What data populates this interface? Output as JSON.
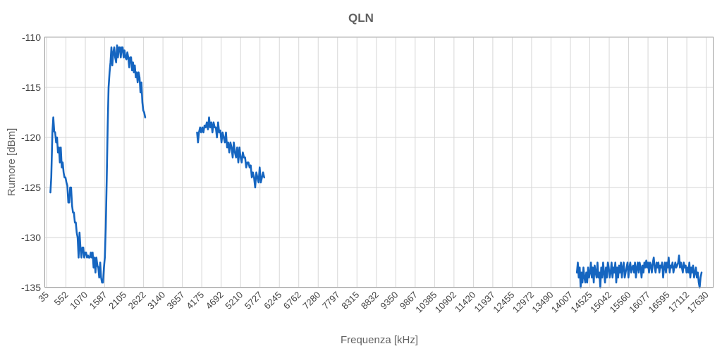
{
  "chart_data": {
    "type": "line",
    "title": "QLN",
    "xlabel": "Frequenza [kHz]",
    "ylabel": "Rumore [dBm]",
    "ylim": [
      -135,
      -110
    ],
    "yticks": [
      "-110",
      "-115",
      "-120",
      "-125",
      "-130",
      "-135"
    ],
    "xlim": [
      35,
      17800
    ],
    "xticks": [
      "35",
      "552",
      "1070",
      "1587",
      "2105",
      "2622",
      "3140",
      "3657",
      "4175",
      "4692",
      "5210",
      "5727",
      "6245",
      "6762",
      "7280",
      "7797",
      "8315",
      "8832",
      "9350",
      "9867",
      "10385",
      "10902",
      "11420",
      "11937",
      "12455",
      "12972",
      "13490",
      "14007",
      "14525",
      "15042",
      "15560",
      "16077",
      "16595",
      "17112",
      "17630"
    ],
    "grid": true,
    "legend": "none",
    "colors": {
      "series": "#1565c0"
    },
    "series": [
      {
        "values": [
          [
            138,
            -125.5
          ],
          [
            160,
            -124
          ],
          [
            190,
            -119.5
          ],
          [
            215,
            -118
          ],
          [
            240,
            -119.4
          ],
          [
            265,
            -119.5
          ],
          [
            290,
            -120.5
          ],
          [
            315,
            -120
          ],
          [
            340,
            -121.5
          ],
          [
            365,
            -121
          ],
          [
            390,
            -122.5
          ],
          [
            415,
            -121
          ],
          [
            440,
            -123
          ],
          [
            465,
            -122.5
          ],
          [
            490,
            -123.5
          ],
          [
            515,
            -124
          ],
          [
            540,
            -124
          ],
          [
            565,
            -124.5
          ],
          [
            590,
            -124.8
          ],
          [
            615,
            -126.5
          ],
          [
            640,
            -126.5
          ],
          [
            665,
            -125
          ],
          [
            690,
            -125
          ],
          [
            715,
            -126.8
          ],
          [
            740,
            -127.5
          ],
          [
            765,
            -127.5
          ],
          [
            790,
            -128.5
          ],
          [
            815,
            -128.5
          ],
          [
            840,
            -129.5
          ],
          [
            865,
            -130
          ],
          [
            890,
            -132
          ],
          [
            915,
            -129.5
          ],
          [
            940,
            -131
          ],
          [
            965,
            -132
          ],
          [
            990,
            -131
          ],
          [
            1015,
            -131
          ],
          [
            1040,
            -132
          ],
          [
            1065,
            -131.5
          ],
          [
            1090,
            -131.5
          ],
          [
            1115,
            -132
          ],
          [
            1140,
            -131.8
          ],
          [
            1165,
            -132
          ],
          [
            1190,
            -132
          ],
          [
            1215,
            -131.5
          ],
          [
            1240,
            -132
          ],
          [
            1265,
            -131.5
          ],
          [
            1290,
            -133
          ],
          [
            1315,
            -132
          ],
          [
            1340,
            -133.5
          ],
          [
            1365,
            -132
          ],
          [
            1390,
            -132.8
          ],
          [
            1415,
            -133
          ],
          [
            1440,
            -134
          ],
          [
            1465,
            -132.5
          ],
          [
            1490,
            -134
          ],
          [
            1515,
            -134.5
          ],
          [
            1540,
            -134.5
          ],
          [
            1565,
            -133
          ],
          [
            1590,
            -132
          ],
          [
            1615,
            -129
          ],
          [
            1640,
            -124
          ],
          [
            1665,
            -119
          ],
          [
            1690,
            -115
          ],
          [
            1715,
            -113.5
          ],
          [
            1740,
            -112.5
          ],
          [
            1765,
            -111
          ],
          [
            1790,
            -112.8
          ],
          [
            1815,
            -111.5
          ],
          [
            1840,
            -111
          ],
          [
            1865,
            -112
          ],
          [
            1890,
            -112.5
          ],
          [
            1915,
            -110.8
          ],
          [
            1940,
            -112
          ],
          [
            1965,
            -111
          ],
          [
            1990,
            -111
          ],
          [
            2015,
            -112
          ],
          [
            2040,
            -111
          ],
          [
            2065,
            -111
          ],
          [
            2090,
            -112
          ],
          [
            2115,
            -111.3
          ],
          [
            2140,
            -112
          ],
          [
            2165,
            -112.2
          ],
          [
            2190,
            -111.5
          ],
          [
            2215,
            -112
          ],
          [
            2240,
            -113
          ],
          [
            2265,
            -112
          ],
          [
            2290,
            -112
          ],
          [
            2315,
            -113.3
          ],
          [
            2340,
            -112.5
          ],
          [
            2365,
            -113.5
          ],
          [
            2390,
            -112.8
          ],
          [
            2415,
            -114
          ],
          [
            2440,
            -113.5
          ],
          [
            2465,
            -114.5
          ],
          [
            2490,
            -113.5
          ],
          [
            2515,
            -114
          ],
          [
            2540,
            -115.5
          ],
          [
            2565,
            -114.5
          ],
          [
            2590,
            -116.5
          ],
          [
            2615,
            -117.3
          ],
          [
            2640,
            -117.5
          ],
          [
            2665,
            -118
          ]
        ]
      },
      {
        "values": [
          [
            4050,
            -119.5
          ],
          [
            4075,
            -120.5
          ],
          [
            4100,
            -119.5
          ],
          [
            4130,
            -119
          ],
          [
            4160,
            -119.5
          ],
          [
            4190,
            -119
          ],
          [
            4220,
            -119.5
          ],
          [
            4250,
            -118.8
          ],
          [
            4280,
            -119
          ],
          [
            4310,
            -118.5
          ],
          [
            4340,
            -119.2
          ],
          [
            4370,
            -118
          ],
          [
            4400,
            -119
          ],
          [
            4430,
            -118.5
          ],
          [
            4460,
            -119.5
          ],
          [
            4490,
            -118.5
          ],
          [
            4520,
            -119
          ],
          [
            4550,
            -119
          ],
          [
            4580,
            -120
          ],
          [
            4610,
            -118.5
          ],
          [
            4640,
            -119.5
          ],
          [
            4670,
            -119.3
          ],
          [
            4700,
            -120.5
          ],
          [
            4730,
            -119.5
          ],
          [
            4760,
            -120
          ],
          [
            4790,
            -120.5
          ],
          [
            4820,
            -119.5
          ],
          [
            4850,
            -121
          ],
          [
            4880,
            -120.5
          ],
          [
            4910,
            -121.5
          ],
          [
            4940,
            -120.5
          ],
          [
            4970,
            -121
          ],
          [
            5000,
            -122
          ],
          [
            5030,
            -120.5
          ],
          [
            5060,
            -121.5
          ],
          [
            5090,
            -122
          ],
          [
            5120,
            -121
          ],
          [
            5150,
            -122.5
          ],
          [
            5180,
            -121
          ],
          [
            5210,
            -122
          ],
          [
            5240,
            -122.5
          ],
          [
            5270,
            -121.5
          ],
          [
            5300,
            -122
          ],
          [
            5330,
            -122
          ],
          [
            5360,
            -123
          ],
          [
            5390,
            -122.5
          ],
          [
            5420,
            -122.5
          ],
          [
            5450,
            -123
          ],
          [
            5480,
            -122.8
          ],
          [
            5510,
            -124
          ],
          [
            5540,
            -123.5
          ],
          [
            5570,
            -124
          ],
          [
            5600,
            -125
          ],
          [
            5630,
            -123.5
          ],
          [
            5660,
            -124
          ],
          [
            5690,
            -124.5
          ],
          [
            5720,
            -123
          ],
          [
            5750,
            -124.5
          ],
          [
            5780,
            -124
          ],
          [
            5810,
            -123.5
          ],
          [
            5840,
            -124
          ]
        ]
      },
      {
        "values": [
          [
            14180,
            -133.5
          ],
          [
            14205,
            -132.5
          ],
          [
            14230,
            -134
          ],
          [
            14255,
            -133
          ],
          [
            14280,
            -135
          ],
          [
            14305,
            -133.5
          ],
          [
            14330,
            -134.5
          ],
          [
            14355,
            -133
          ],
          [
            14380,
            -134
          ],
          [
            14405,
            -134.5
          ],
          [
            14430,
            -133.5
          ],
          [
            14455,
            -134.5
          ],
          [
            14480,
            -133
          ],
          [
            14505,
            -134
          ],
          [
            14530,
            -133.5
          ],
          [
            14555,
            -132.5
          ],
          [
            14580,
            -134
          ],
          [
            14605,
            -133
          ],
          [
            14630,
            -134.5
          ],
          [
            14655,
            -132.8
          ],
          [
            14680,
            -133.5
          ],
          [
            14705,
            -134
          ],
          [
            14730,
            -132.5
          ],
          [
            14755,
            -134
          ],
          [
            14780,
            -133.5
          ],
          [
            14805,
            -135
          ],
          [
            14830,
            -133
          ],
          [
            14855,
            -134
          ],
          [
            14880,
            -132.5
          ],
          [
            14905,
            -133.5
          ],
          [
            14930,
            -134.5
          ],
          [
            14955,
            -133
          ],
          [
            14980,
            -134
          ],
          [
            15005,
            -132.5
          ],
          [
            15030,
            -133
          ],
          [
            15055,
            -134
          ],
          [
            15080,
            -133.5
          ],
          [
            15105,
            -132.5
          ],
          [
            15130,
            -134
          ],
          [
            15155,
            -133
          ],
          [
            15180,
            -133.5
          ],
          [
            15205,
            -132.5
          ],
          [
            15230,
            -134.5
          ],
          [
            15255,
            -133
          ],
          [
            15280,
            -134
          ],
          [
            15305,
            -132.8
          ],
          [
            15330,
            -133.5
          ],
          [
            15355,
            -132.5
          ],
          [
            15380,
            -134
          ],
          [
            15405,
            -133
          ],
          [
            15430,
            -132.5
          ],
          [
            15455,
            -134
          ],
          [
            15480,
            -133.5
          ],
          [
            15505,
            -133
          ],
          [
            15530,
            -132.5
          ],
          [
            15555,
            -134
          ],
          [
            15580,
            -133
          ],
          [
            15605,
            -132.5
          ],
          [
            15630,
            -133.5
          ],
          [
            15655,
            -133
          ],
          [
            15680,
            -132.8
          ],
          [
            15705,
            -133.5
          ],
          [
            15730,
            -132.5
          ],
          [
            15755,
            -134
          ],
          [
            15780,
            -133
          ],
          [
            15805,
            -132.5
          ],
          [
            15830,
            -133.5
          ],
          [
            15855,
            -132.5
          ],
          [
            15880,
            -133
          ],
          [
            15905,
            -134
          ],
          [
            15930,
            -132.8
          ],
          [
            15955,
            -133.5
          ],
          [
            15980,
            -132.5
          ],
          [
            16005,
            -133
          ],
          [
            16030,
            -132.3
          ],
          [
            16055,
            -133
          ],
          [
            16080,
            -132.5
          ],
          [
            16105,
            -133.5
          ],
          [
            16130,
            -132.5
          ],
          [
            16155,
            -132.8
          ],
          [
            16180,
            -133.5
          ],
          [
            16205,
            -132.5
          ],
          [
            16230,
            -132
          ],
          [
            16255,
            -133
          ],
          [
            16280,
            -133.5
          ],
          [
            16305,
            -132.5
          ],
          [
            16330,
            -133
          ],
          [
            16355,
            -132.5
          ],
          [
            16380,
            -133.5
          ],
          [
            16405,
            -132.8
          ],
          [
            16430,
            -133
          ],
          [
            16455,
            -132.5
          ],
          [
            16480,
            -134
          ],
          [
            16505,
            -133
          ],
          [
            16530,
            -132.5
          ],
          [
            16555,
            -133.5
          ],
          [
            16580,
            -132.5
          ],
          [
            16605,
            -133
          ],
          [
            16630,
            -132
          ],
          [
            16655,
            -133.5
          ],
          [
            16680,
            -132.8
          ],
          [
            16705,
            -133
          ],
          [
            16730,
            -132.5
          ],
          [
            16755,
            -133.5
          ],
          [
            16780,
            -133
          ],
          [
            16805,
            -132.5
          ],
          [
            16830,
            -133
          ],
          [
            16855,
            -132.8
          ],
          [
            16880,
            -132.5
          ],
          [
            16905,
            -131.8
          ],
          [
            16930,
            -133
          ],
          [
            16955,
            -132.5
          ],
          [
            16980,
            -133
          ],
          [
            17005,
            -133.5
          ],
          [
            17030,
            -132.5
          ],
          [
            17055,
            -133
          ],
          [
            17080,
            -132.8
          ],
          [
            17105,
            -133.5
          ],
          [
            17130,
            -133
          ],
          [
            17155,
            -133.5
          ],
          [
            17180,
            -132.5
          ],
          [
            17205,
            -134
          ],
          [
            17230,
            -133
          ],
          [
            17255,
            -133.5
          ],
          [
            17280,
            -132.8
          ],
          [
            17305,
            -134
          ],
          [
            17330,
            -133.5
          ],
          [
            17355,
            -133
          ],
          [
            17380,
            -134
          ],
          [
            17405,
            -133.5
          ],
          [
            17430,
            -134.5
          ],
          [
            17455,
            -135
          ],
          [
            17480,
            -134
          ],
          [
            17505,
            -133.5
          ]
        ]
      }
    ]
  }
}
